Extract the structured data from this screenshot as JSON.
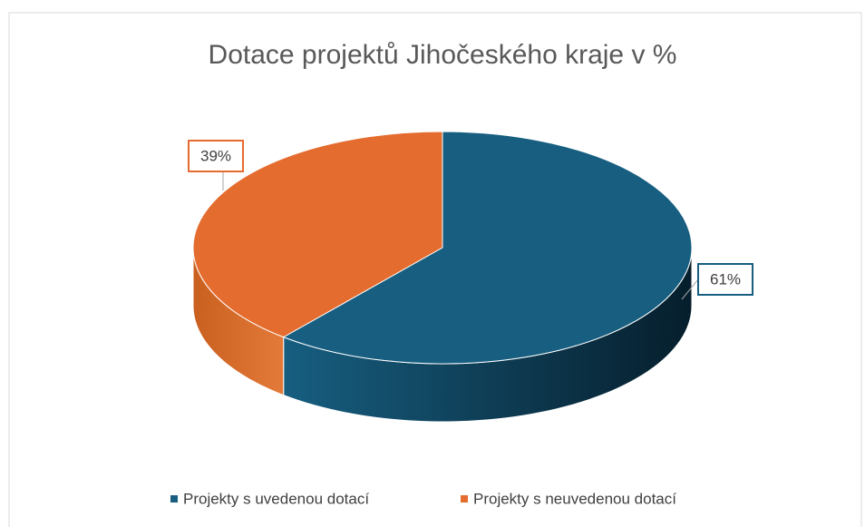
{
  "chart_data": {
    "type": "pie",
    "title": "Dotace projektů Jihočeského kraje v %",
    "categories": [
      "Projekty s uvedenou dotací",
      "Projekty s neuvedenou dotací"
    ],
    "values": [
      61,
      39
    ],
    "value_labels": [
      "61%",
      "39%"
    ],
    "colors": [
      "#175e80",
      "#e46c2e"
    ],
    "legend": "bottom"
  }
}
